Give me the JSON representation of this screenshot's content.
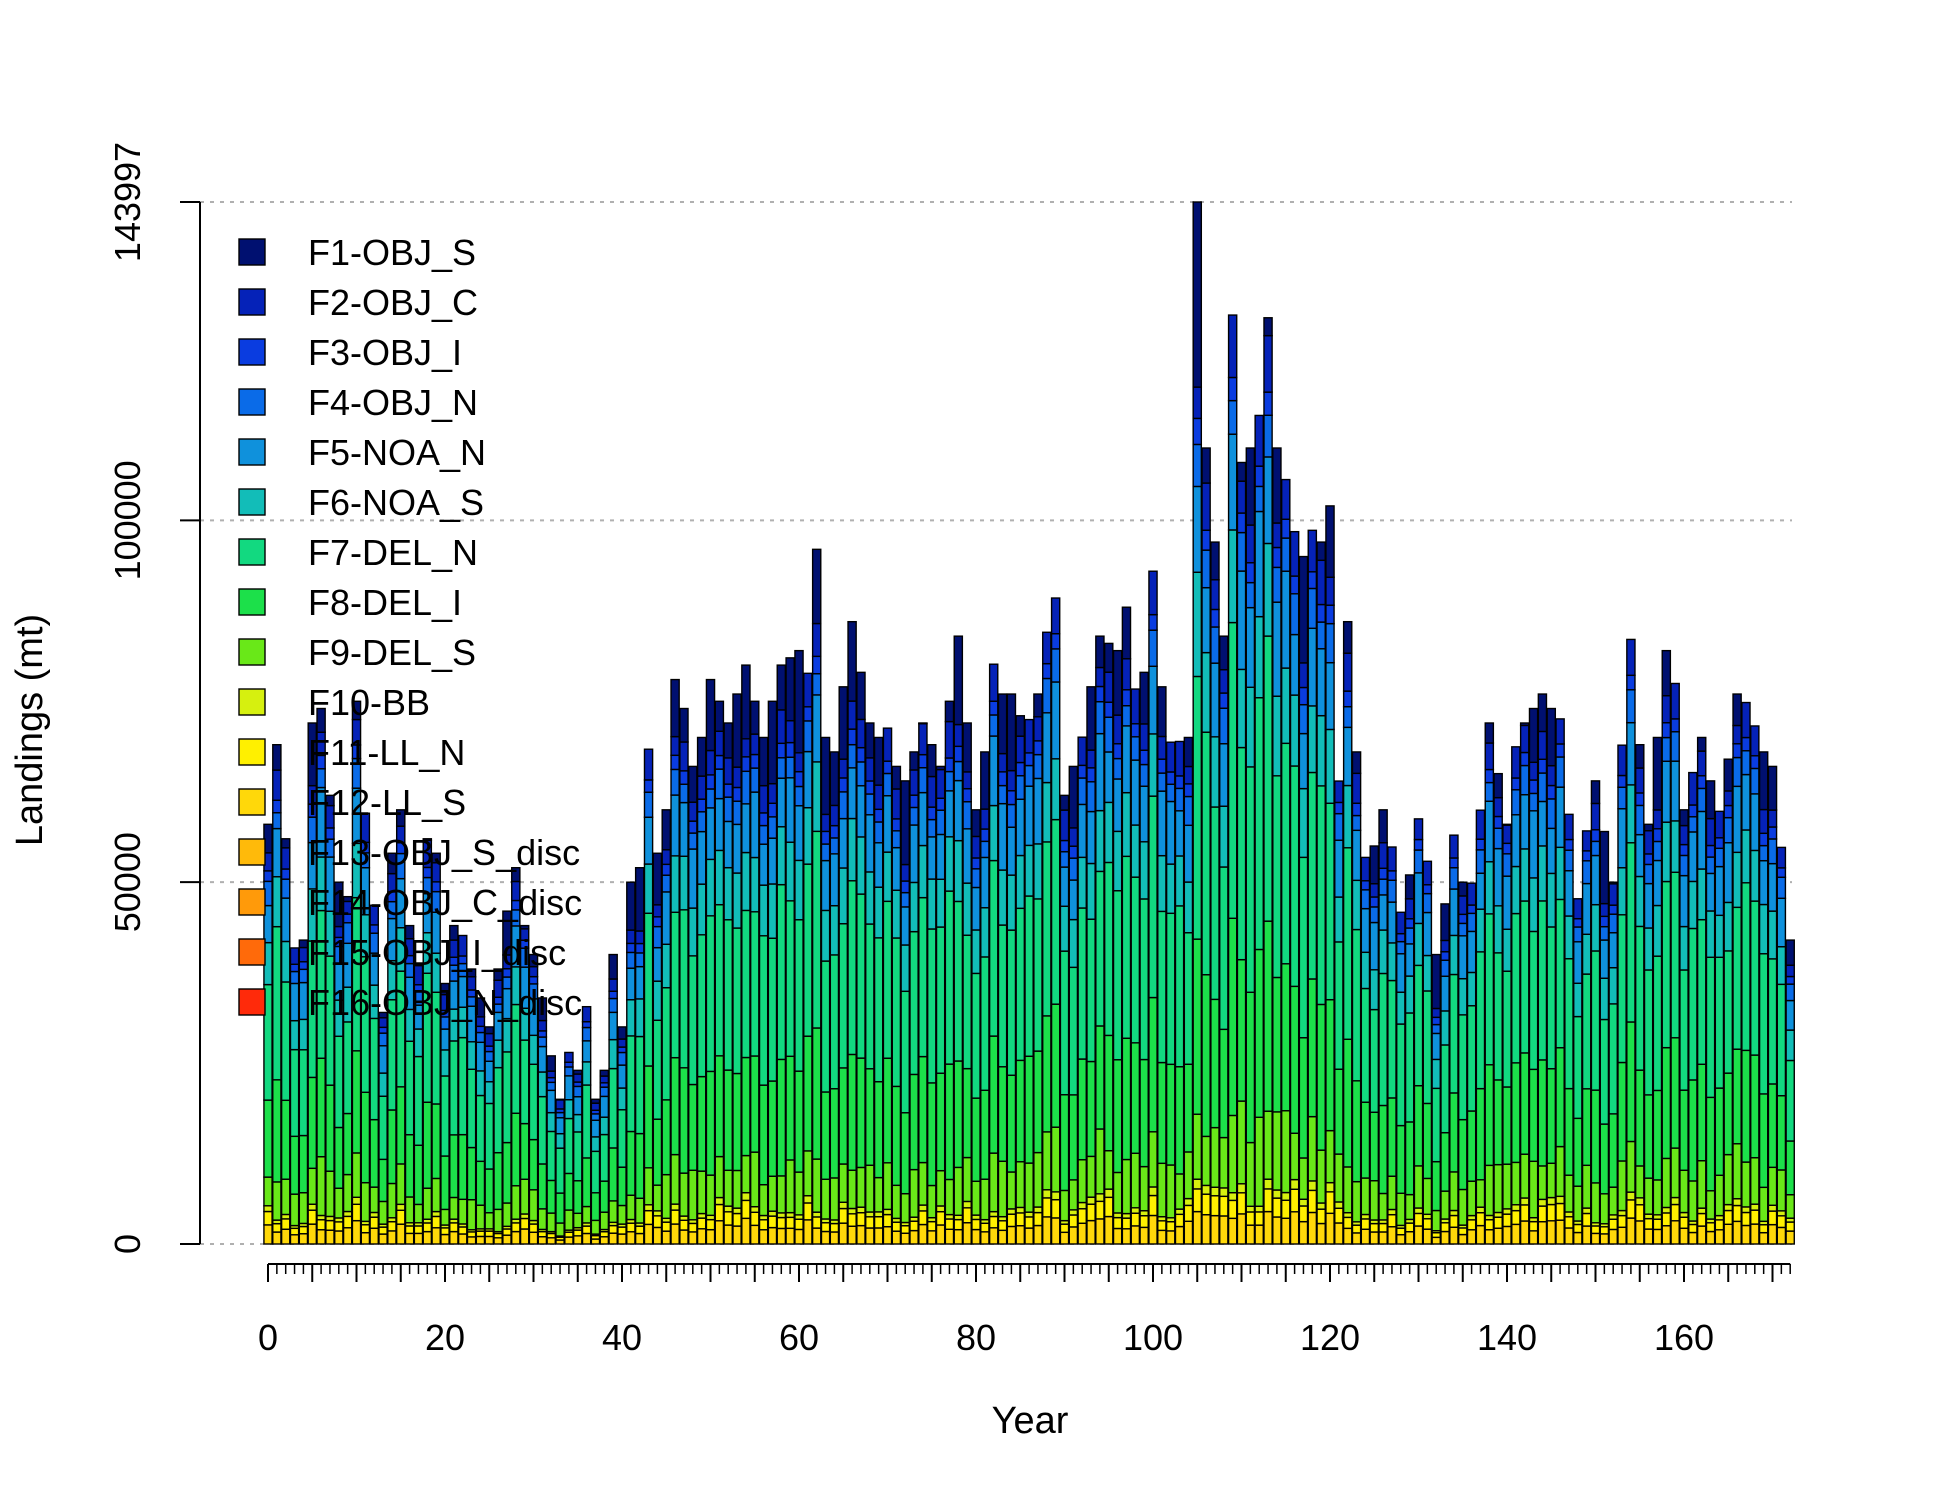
{
  "chart_data": {
    "type": "bar",
    "stacked": true,
    "xlabel": "Year",
    "ylabel": "Landings (mt)",
    "xlim": [
      0,
      172
    ],
    "ylim": [
      0,
      143997
    ],
    "x_ticks": [
      0,
      20,
      40,
      60,
      80,
      100,
      120,
      140,
      160
    ],
    "x_ticks_labels": [
      "0",
      "20",
      "40",
      "60",
      "80",
      "100",
      "120",
      "140",
      "160"
    ],
    "y_ticks": [
      0,
      50000,
      100000,
      143997
    ],
    "y_ticks_labels": [
      "0",
      "50000",
      "100000",
      "143997"
    ],
    "grid": "horizontal dotted at y ticks",
    "legend_position": "top-left",
    "series": [
      {
        "name": "F1-OBJ_S",
        "color": "#001070"
      },
      {
        "name": "F2-OBJ_C",
        "color": "#0522B8"
      },
      {
        "name": "F3-OBJ_I",
        "color": "#0A3CE0"
      },
      {
        "name": "F4-OBJ_N",
        "color": "#0A6BE8"
      },
      {
        "name": "F5-NOA_N",
        "color": "#0F91DC"
      },
      {
        "name": "F6-NOA_S",
        "color": "#12BDB8"
      },
      {
        "name": "F7-DEL_N",
        "color": "#12D980"
      },
      {
        "name": "F8-DEL_I",
        "color": "#1CE04A"
      },
      {
        "name": "F9-DEL_S",
        "color": "#69E818"
      },
      {
        "name": "F10-BB",
        "color": "#D6F00F"
      },
      {
        "name": "F11-LL_N",
        "color": "#FFF000"
      },
      {
        "name": "F12-LL_S",
        "color": "#FFD80A"
      },
      {
        "name": "F13-OBJ_S_disc",
        "color": "#FFBA0A"
      },
      {
        "name": "F14-OBJ_C_disc",
        "color": "#FF9A0A"
      },
      {
        "name": "F15-OBJ_I_disc",
        "color": "#FF6A0A"
      },
      {
        "name": "F16-OBJ_N_disc",
        "color": "#FF2A0A"
      }
    ],
    "totals_anchor_years": [
      0,
      1,
      2,
      3,
      4,
      5,
      6,
      7,
      8,
      9,
      10,
      11,
      12,
      13,
      14,
      15,
      16,
      17,
      18,
      19,
      20,
      21,
      22,
      23,
      24,
      25,
      26,
      27,
      28,
      29,
      30,
      31,
      32,
      33,
      34,
      35,
      36,
      37,
      38,
      39,
      40,
      41,
      42,
      43,
      44,
      45,
      46,
      47,
      48,
      49,
      50,
      52,
      54,
      56,
      58,
      60,
      61,
      62,
      63,
      64,
      66,
      68,
      70,
      72,
      74,
      76,
      78,
      80,
      82,
      84,
      86,
      88,
      89,
      90,
      92,
      94,
      96,
      97,
      98,
      100,
      102,
      104,
      105,
      106,
      108,
      109,
      110,
      112,
      113,
      114,
      116,
      118,
      120,
      121,
      122,
      124,
      126,
      128,
      130,
      132,
      134,
      136,
      138,
      140,
      142,
      144,
      146,
      148,
      150,
      152,
      154,
      156,
      158,
      160,
      162,
      164,
      166,
      168,
      170,
      171,
      172
    ],
    "totals_anchor_values": [
      58000,
      69000,
      56000,
      40000,
      42000,
      72000,
      74000,
      62000,
      50000,
      48000,
      75000,
      58000,
      46000,
      32000,
      54000,
      60000,
      44000,
      38000,
      56000,
      54000,
      36000,
      44000,
      42000,
      38000,
      34000,
      30000,
      38000,
      46000,
      52000,
      44000,
      40000,
      34000,
      26000,
      20000,
      26000,
      24000,
      32000,
      20000,
      24000,
      40000,
      30000,
      50000,
      52000,
      68000,
      54000,
      60000,
      78000,
      74000,
      66000,
      70000,
      78000,
      72000,
      80000,
      70000,
      80000,
      82000,
      78000,
      96000,
      70000,
      68000,
      86000,
      72000,
      68000,
      64000,
      72000,
      66000,
      84000,
      60000,
      76000,
      76000,
      70000,
      82000,
      84000,
      62000,
      70000,
      84000,
      82000,
      88000,
      72000,
      86000,
      68000,
      70000,
      143997,
      110000,
      84000,
      128000,
      108000,
      112000,
      128000,
      110000,
      98000,
      92000,
      102000,
      62000,
      86000,
      50000,
      60000,
      44000,
      58000,
      40000,
      54000,
      46000,
      72000,
      58000,
      72000,
      76000,
      72000,
      46000,
      64000,
      50000,
      80000,
      58000,
      82000,
      60000,
      70000,
      58000,
      76000,
      70000,
      66000,
      52000,
      42000
    ],
    "composition_note": "bars are stacked by fleet; per-fleet split estimated"
  }
}
